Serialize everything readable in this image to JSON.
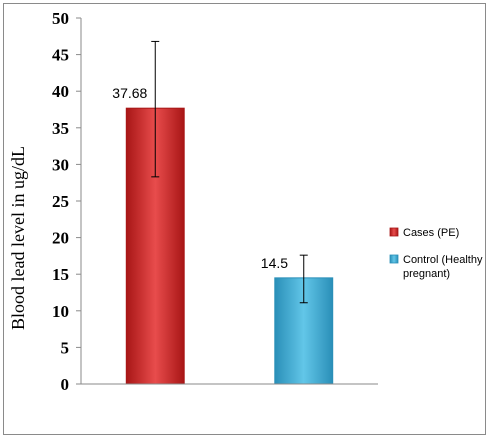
{
  "chart_data": {
    "type": "bar",
    "title": "",
    "xlabel": "",
    "ylabel": "Blood lead level in ug/dL",
    "ylim": [
      0,
      50
    ],
    "yticks": [
      0,
      5,
      10,
      15,
      20,
      25,
      30,
      35,
      40,
      45,
      50
    ],
    "grid": false,
    "legend_position": "right",
    "series": [
      {
        "name": "Cases (PE)",
        "value": 37.68,
        "value_label": "37.68",
        "error_low": 28.3,
        "error_high": 46.8,
        "color": "#d42a2a",
        "color_dark": "#a81616",
        "color_light": "#e84c4c"
      },
      {
        "name": "Control (Healthy pregnant)",
        "legend_lines": [
          "Control (Healthy",
          "pregnant)"
        ],
        "value": 14.5,
        "value_label": "14.5",
        "error_low": 11.1,
        "error_high": 17.6,
        "color": "#3fb0d9",
        "color_dark": "#2a8fb8",
        "color_light": "#62c6e8"
      }
    ]
  }
}
